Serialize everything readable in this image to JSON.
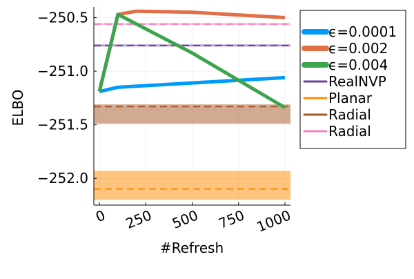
{
  "chart_data": {
    "type": "line",
    "title": "",
    "xlabel": "#Refresh",
    "ylabel": "ELBO",
    "xlim": [
      -30,
      1030
    ],
    "ylim": [
      -252.25,
      -250.4
    ],
    "x_ticks": [
      0,
      250,
      500,
      750,
      1000
    ],
    "x_tick_labels": [
      "0",
      "250",
      "500",
      "750",
      "1000"
    ],
    "y_ticks": [
      -250.5,
      -251.0,
      -251.5,
      -252.0
    ],
    "y_tick_labels": [
      "−250.5",
      "−251.0",
      "−251.5",
      "−252.0"
    ],
    "grid": true,
    "legend_position": "top-right, outside plot",
    "series": [
      {
        "name": "ϵ=0.0001",
        "color": "#009af9",
        "style": "solid",
        "x": [
          0,
          100,
          1000
        ],
        "y": [
          -251.19,
          -251.15,
          -251.06
        ]
      },
      {
        "name": "ϵ=0.002",
        "color": "#e26f46",
        "style": "solid",
        "x": [
          0,
          100,
          200,
          500,
          1000
        ],
        "y": [
          -251.19,
          -250.47,
          -250.44,
          -250.45,
          -250.5
        ]
      },
      {
        "name": "ϵ=0.004",
        "color": "#3da44d",
        "style": "solid",
        "x": [
          0,
          100,
          500,
          1000
        ],
        "y": [
          -251.19,
          -250.47,
          -250.83,
          -251.34
        ]
      }
    ],
    "reference_lines": [
      {
        "name": "RealNVP",
        "color": "#6b3fa0",
        "style": "dashed",
        "y": -250.76,
        "band": [
          -250.75,
          -250.77
        ]
      },
      {
        "name": "Planar",
        "color": "#ff8c00",
        "style": "dashed",
        "y": -252.1,
        "band": [
          -251.93,
          -252.2
        ]
      },
      {
        "name": "Radial",
        "color": "#a65628",
        "style": "dashed",
        "y": -251.33,
        "band": [
          -251.31,
          -251.49
        ]
      },
      {
        "name": "Radial",
        "color": "#f781bf",
        "style": "dashed",
        "y": -250.56,
        "band": [
          -250.55,
          -250.57
        ]
      }
    ]
  }
}
